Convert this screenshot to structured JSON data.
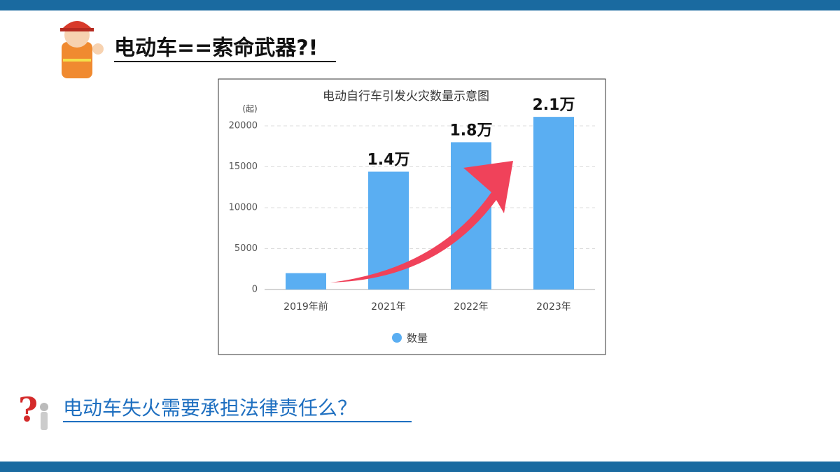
{
  "slide": {
    "title": "电动车==索命武器?!",
    "question": "电动车失火需要承担法律责任么？"
  },
  "chart_data": {
    "type": "bar",
    "title": "电动自行车引发火灾数量示意图",
    "y_label": "(起)",
    "categories": [
      "2019年前",
      "2021年",
      "2022年",
      "2023年"
    ],
    "series": [
      {
        "name": "数量",
        "color": "#5aaef2",
        "values": [
          2000,
          14400,
          18000,
          21100
        ],
        "value_labels": [
          null,
          "1.4万",
          "1.8万",
          "2.1万"
        ]
      }
    ],
    "ylim": [
      0,
      20000
    ],
    "yticks": [
      0,
      5000,
      10000,
      15000,
      20000
    ],
    "grid": true
  }
}
